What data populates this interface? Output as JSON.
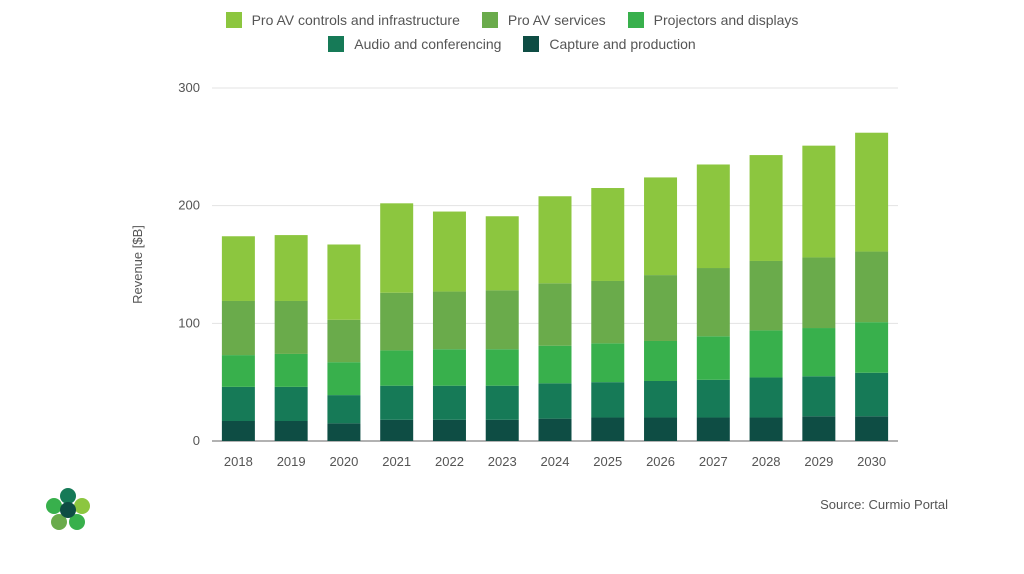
{
  "chart_data": {
    "type": "bar",
    "stacked": true,
    "ylabel": "Revenue [$B]",
    "ylim": [
      0,
      300
    ],
    "yticks": [
      0,
      100,
      200,
      300
    ],
    "grid": true,
    "legend_position": "top-center",
    "categories": [
      "2018",
      "2019",
      "2020",
      "2021",
      "2022",
      "2023",
      "2024",
      "2025",
      "2026",
      "2027",
      "2028",
      "2029",
      "2030"
    ],
    "series": [
      {
        "name": "Capture and production",
        "color": "#0e4d44",
        "values": [
          17,
          17,
          15,
          18,
          18,
          18,
          19,
          20,
          20,
          20,
          20,
          21,
          21
        ]
      },
      {
        "name": "Audio and conferencing",
        "color": "#167a57",
        "values": [
          29,
          29,
          24,
          29,
          29,
          29,
          30,
          30,
          31,
          32,
          34,
          34,
          37
        ]
      },
      {
        "name": "Projectors and displays",
        "color": "#38b04c",
        "values": [
          27,
          28,
          28,
          30,
          31,
          31,
          32,
          33,
          34,
          37,
          40,
          41,
          43
        ]
      },
      {
        "name": "Pro AV services",
        "color": "#6aab4b",
        "values": [
          46,
          45,
          36,
          49,
          49,
          50,
          53,
          53,
          56,
          58,
          59,
          60,
          60
        ]
      },
      {
        "name": "Pro AV controls and infrastructure",
        "color": "#8cc63f",
        "values": [
          55,
          56,
          64,
          76,
          68,
          63,
          74,
          79,
          83,
          88,
          90,
          95,
          101
        ]
      }
    ]
  },
  "legend": {
    "row1": [
      {
        "label": "Pro AV controls and infrastructure",
        "color": "#8cc63f"
      },
      {
        "label": "Pro AV services",
        "color": "#6aab4b"
      },
      {
        "label": "Projectors and displays",
        "color": "#38b04c"
      }
    ],
    "row2": [
      {
        "label": "Audio and conferencing",
        "color": "#167a57"
      },
      {
        "label": "Capture and production",
        "color": "#0e4d44"
      }
    ]
  },
  "source_text": "Source: Curmio Portal",
  "logo": {
    "icon": "flower-logo-icon",
    "colors": [
      "#0e4d44",
      "#167a57",
      "#38b04c",
      "#8cc63f"
    ]
  }
}
